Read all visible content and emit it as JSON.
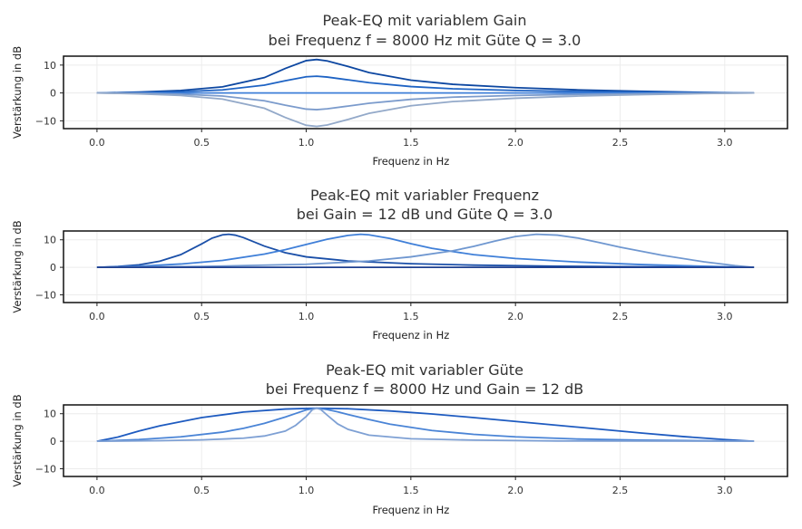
{
  "chart_data": [
    {
      "type": "line",
      "title": [
        "Peak-EQ mit variablem Gain",
        "bei Frequenz f = 8000 Hz mit Güte Q = 3.0"
      ],
      "xlabel": "Frequenz in Hz",
      "ylabel": "Verstärkung in dB",
      "xlim": [
        -0.16,
        3.3
      ],
      "ylim": [
        -12.8,
        13.2
      ],
      "xticks": [
        0.0,
        0.5,
        1.0,
        1.5,
        2.0,
        2.5,
        3.0
      ],
      "xtick_labels": [
        "0.0",
        "0.5",
        "1.0",
        "1.5",
        "2.0",
        "2.5",
        "3.0"
      ],
      "yticks": [
        10,
        0,
        -10
      ],
      "ytick_labels": [
        "10",
        "0",
        "−10"
      ],
      "grid": true,
      "colors": [
        "#0d47a1",
        "#1e63c4",
        "#3f7fd8",
        "#7b9bcc",
        "#93a9c9"
      ],
      "series": [
        {
          "x": [
            0,
            0.2,
            0.4,
            0.6,
            0.8,
            0.9,
            1.0,
            1.05,
            1.1,
            1.2,
            1.3,
            1.5,
            1.7,
            2.0,
            2.3,
            2.6,
            2.9,
            3.14
          ],
          "values": [
            0,
            0.3,
            0.9,
            2.2,
            5.5,
            8.8,
            11.6,
            12.0,
            11.5,
            9.5,
            7.3,
            4.6,
            3.1,
            1.9,
            1.1,
            0.6,
            0.2,
            0
          ]
        },
        {
          "x": [
            0,
            0.2,
            0.4,
            0.6,
            0.8,
            0.9,
            1.0,
            1.05,
            1.1,
            1.2,
            1.3,
            1.5,
            1.7,
            2.0,
            2.3,
            2.6,
            2.9,
            3.14
          ],
          "values": [
            0,
            0.15,
            0.45,
            1.1,
            2.8,
            4.4,
            5.8,
            6.0,
            5.7,
            4.7,
            3.7,
            2.3,
            1.5,
            0.9,
            0.5,
            0.3,
            0.1,
            0
          ]
        },
        {
          "x": [
            0,
            3.14
          ],
          "values": [
            0,
            0
          ]
        },
        {
          "x": [
            0,
            0.2,
            0.4,
            0.6,
            0.8,
            0.9,
            1.0,
            1.05,
            1.1,
            1.2,
            1.3,
            1.5,
            1.7,
            2.0,
            2.3,
            2.6,
            2.9,
            3.14
          ],
          "values": [
            0,
            -0.15,
            -0.45,
            -1.1,
            -2.8,
            -4.4,
            -5.8,
            -6.0,
            -5.7,
            -4.7,
            -3.7,
            -2.3,
            -1.5,
            -0.9,
            -0.5,
            -0.3,
            -0.1,
            0
          ]
        },
        {
          "x": [
            0,
            0.2,
            0.4,
            0.6,
            0.8,
            0.9,
            1.0,
            1.05,
            1.1,
            1.2,
            1.3,
            1.5,
            1.7,
            2.0,
            2.3,
            2.6,
            2.9,
            3.14
          ],
          "values": [
            0,
            -0.3,
            -0.9,
            -2.2,
            -5.5,
            -8.8,
            -11.6,
            -12.0,
            -11.5,
            -9.5,
            -7.3,
            -4.6,
            -3.1,
            -1.9,
            -1.1,
            -0.6,
            -0.2,
            0
          ]
        }
      ]
    },
    {
      "type": "line",
      "title": [
        "Peak-EQ mit variabler Frequenz",
        "bei Gain = 12 dB und Güte Q = 3.0"
      ],
      "xlabel": "Frequenz in Hz",
      "ylabel": "Verstärkung in dB",
      "xlim": [
        -0.16,
        3.3
      ],
      "ylim": [
        -12.8,
        13.2
      ],
      "xticks": [
        0.0,
        0.5,
        1.0,
        1.5,
        2.0,
        2.5,
        3.0
      ],
      "xtick_labels": [
        "0.0",
        "0.5",
        "1.0",
        "1.5",
        "2.0",
        "2.5",
        "3.0"
      ],
      "yticks": [
        10,
        0,
        -10
      ],
      "ytick_labels": [
        "10",
        "0",
        "−10"
      ],
      "grid": true,
      "colors": [
        "#1a4fa8",
        "#3f7fd8",
        "#6f97d0",
        "#1e3f8f"
      ],
      "series": [
        {
          "x": [
            0,
            0.1,
            0.2,
            0.3,
            0.4,
            0.5,
            0.55,
            0.6,
            0.63,
            0.66,
            0.7,
            0.8,
            0.9,
            1.0,
            1.2,
            1.5,
            1.8,
            2.2,
            2.6,
            3.0,
            3.14
          ],
          "values": [
            0,
            0.3,
            0.9,
            2.2,
            4.6,
            8.5,
            10.6,
            11.8,
            12.0,
            11.7,
            10.8,
            7.7,
            5.3,
            3.8,
            2.3,
            1.3,
            0.8,
            0.4,
            0.2,
            0.05,
            0
          ]
        },
        {
          "x": [
            0,
            0.2,
            0.4,
            0.6,
            0.8,
            0.9,
            1.0,
            1.1,
            1.2,
            1.26,
            1.3,
            1.4,
            1.5,
            1.6,
            1.8,
            2.0,
            2.3,
            2.6,
            2.9,
            3.14
          ],
          "values": [
            0,
            0.4,
            1.2,
            2.5,
            4.8,
            6.4,
            8.3,
            10.2,
            11.6,
            12.0,
            11.8,
            10.5,
            8.6,
            6.9,
            4.6,
            3.2,
            1.9,
            1.0,
            0.4,
            0
          ]
        },
        {
          "x": [
            0,
            0.5,
            1.0,
            1.3,
            1.5,
            1.7,
            1.8,
            1.9,
            2.0,
            2.1,
            2.2,
            2.3,
            2.4,
            2.5,
            2.7,
            2.9,
            3.05,
            3.14
          ],
          "values": [
            0,
            0.3,
            1.1,
            2.3,
            3.8,
            6.0,
            7.6,
            9.5,
            11.2,
            12.0,
            11.7,
            10.6,
            9.0,
            7.3,
            4.4,
            2.0,
            0.6,
            0
          ]
        },
        {
          "x": [
            0,
            3.14
          ],
          "values": [
            0,
            0
          ]
        }
      ]
    },
    {
      "type": "line",
      "title": [
        "Peak-EQ mit variabler Güte",
        "bei Frequenz f = 8000 Hz und Gain = 12 dB"
      ],
      "xlabel": "Frequenz in Hz",
      "ylabel": "Verstärkung in dB",
      "xlim": [
        -0.16,
        3.3
      ],
      "ylim": [
        -12.8,
        13.2
      ],
      "xticks": [
        0.0,
        0.5,
        1.0,
        1.5,
        2.0,
        2.5,
        3.0
      ],
      "xtick_labels": [
        "0.0",
        "0.5",
        "1.0",
        "1.5",
        "2.0",
        "2.5",
        "3.0"
      ],
      "yticks": [
        10,
        0,
        -10
      ],
      "ytick_labels": [
        "10",
        "0",
        "−10"
      ],
      "grid": true,
      "colors": [
        "#1e5bc0",
        "#4a84d6",
        "#7ea0d4"
      ],
      "series": [
        {
          "x": [
            0,
            0.1,
            0.2,
            0.3,
            0.5,
            0.7,
            0.9,
            1.05,
            1.2,
            1.4,
            1.6,
            1.8,
            2.0,
            2.2,
            2.4,
            2.6,
            2.8,
            3.0,
            3.14
          ],
          "values": [
            0,
            1.5,
            3.7,
            5.6,
            8.6,
            10.6,
            11.7,
            12.0,
            11.8,
            11.0,
            9.9,
            8.6,
            7.2,
            5.8,
            4.4,
            3.0,
            1.7,
            0.6,
            0
          ]
        },
        {
          "x": [
            0,
            0.2,
            0.4,
            0.6,
            0.7,
            0.8,
            0.9,
            0.95,
            1.0,
            1.05,
            1.1,
            1.15,
            1.2,
            1.3,
            1.4,
            1.6,
            1.8,
            2.0,
            2.3,
            2.6,
            3.0,
            3.14
          ],
          "values": [
            0,
            0.6,
            1.6,
            3.3,
            4.7,
            6.5,
            8.8,
            10.1,
            11.4,
            12.0,
            11.5,
            10.7,
            9.7,
            7.9,
            6.2,
            3.9,
            2.5,
            1.6,
            0.8,
            0.4,
            0.1,
            0
          ]
        },
        {
          "x": [
            0,
            0.3,
            0.5,
            0.7,
            0.8,
            0.9,
            0.95,
            1.0,
            1.03,
            1.05,
            1.07,
            1.1,
            1.15,
            1.2,
            1.3,
            1.5,
            1.8,
            2.2,
            3.14
          ],
          "values": [
            0,
            0.2,
            0.5,
            1.1,
            1.9,
            3.7,
            5.8,
            9.0,
            11.5,
            12.0,
            11.5,
            9.5,
            6.3,
            4.3,
            2.2,
            0.9,
            0.4,
            0.1,
            0
          ]
        }
      ]
    }
  ]
}
